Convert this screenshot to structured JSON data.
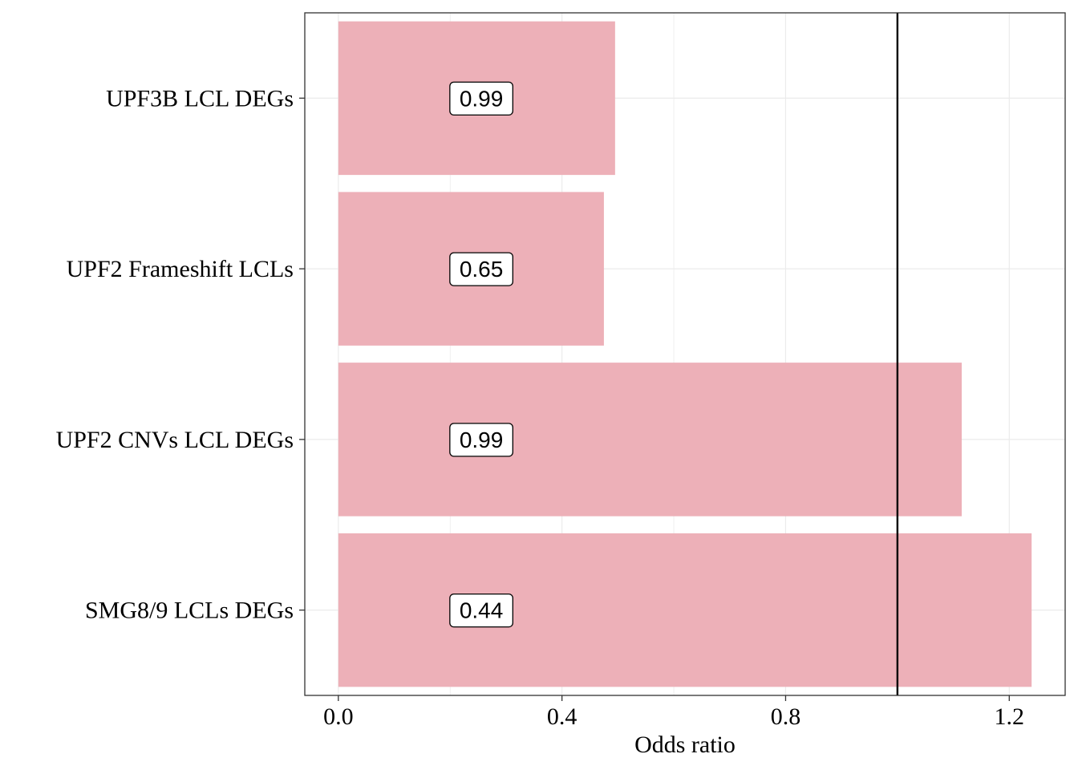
{
  "chart_data": {
    "type": "bar",
    "orientation": "horizontal",
    "categories": [
      "UPF3B LCL DEGs",
      "UPF2 Frameshift LCLs",
      "UPF2 CNVs LCL DEGs",
      "SMG8/9 LCLs DEGs"
    ],
    "values": [
      0.495,
      0.475,
      1.115,
      1.24
    ],
    "data_labels": [
      "0.99",
      "0.65",
      "0.99",
      "0.44"
    ],
    "xlabel": "Odds ratio",
    "ylabel": "",
    "xlim": [
      -0.06,
      1.3
    ],
    "xticks": [
      "0.0",
      "0.4",
      "0.8",
      "1.2"
    ],
    "xtick_values": [
      0.0,
      0.4,
      0.8,
      1.2
    ],
    "reference_line": 1.0,
    "data_label_x": 0.25,
    "grid": true,
    "colors": {
      "bar": "#EDB0B8",
      "reference_line": "#000000",
      "grid": "#EBEBEB",
      "panel_border": "#333333"
    }
  }
}
